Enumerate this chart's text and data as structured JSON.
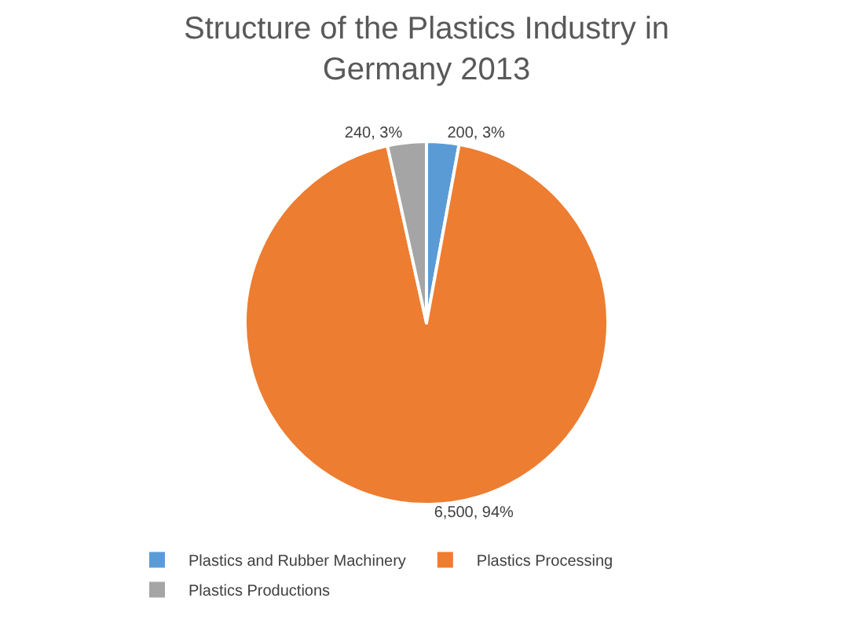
{
  "chart_data": {
    "type": "pie",
    "title": "Structure of the Plastics Industry in Germany 2013",
    "categories": [
      "Plastics and Rubber Machinery",
      "Plastics Processing",
      "Plastics Productions"
    ],
    "values": [
      200,
      6500,
      240
    ],
    "value_labels": [
      "200, 3%",
      "6,500, 94%",
      "240, 3%"
    ],
    "colors": [
      "#5b9bd5",
      "#ed7d31",
      "#a5a5a5"
    ],
    "legend": "bottom"
  }
}
